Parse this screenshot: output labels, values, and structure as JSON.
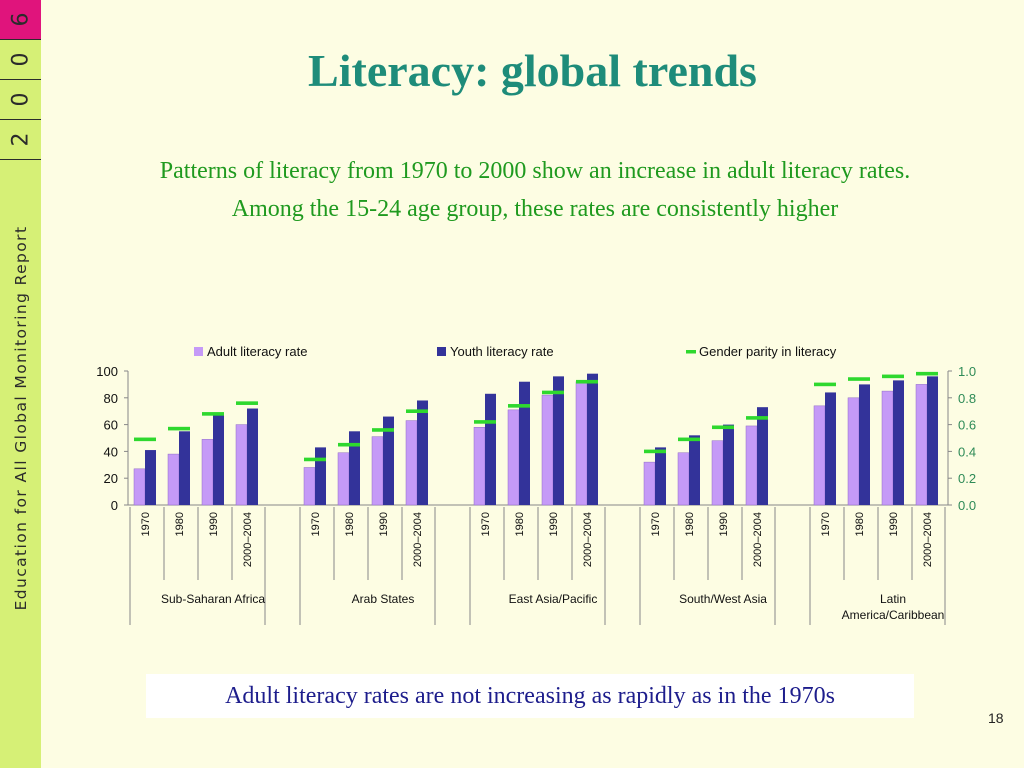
{
  "sidebar": {
    "year_digits": [
      "6",
      "0",
      "0",
      "2"
    ],
    "text": "Education for All Global Monitoring Report"
  },
  "slide": {
    "title": "Literacy: global trends",
    "subtitle_line1": "Patterns of literacy from 1970 to 2000 show an increase in adult literacy rates.",
    "subtitle_line2": "Among the 15-24 age group, these rates are consistently higher",
    "footnote": "Adult literacy rates are not increasing as rapidly as in the 1970s",
    "page_number": "18"
  },
  "colors": {
    "adult": "#c59af7",
    "youth": "#33339a",
    "parity": "#2ed82e",
    "accent_pink": "#e0147c",
    "sidebar_green": "#d6f076"
  },
  "chart_data": {
    "type": "bar",
    "legend": [
      "Adult literacy rate",
      "Youth literacy rate",
      "Gender parity in literacy"
    ],
    "legend_position": "top",
    "grid": false,
    "periods": [
      "1970",
      "1980",
      "1990",
      "2000–2004"
    ],
    "groups": [
      "Sub-Saharan Africa",
      "Arab States",
      "East Asia/Pacific",
      "South/West Asia",
      "Latin America/Caribbean"
    ],
    "y_left": {
      "ticks": [
        "0",
        "20",
        "40",
        "60",
        "80",
        "100"
      ],
      "range": [
        0,
        100
      ]
    },
    "y_right": {
      "ticks": [
        "0.0",
        "0.2",
        "0.4",
        "0.6",
        "0.8",
        "1.0"
      ],
      "range": [
        0,
        1
      ]
    },
    "series": [
      {
        "name": "Adult literacy rate",
        "axis": "left",
        "values": [
          [
            27,
            38,
            49,
            60
          ],
          [
            28,
            39,
            51,
            63
          ],
          [
            58,
            71,
            82,
            92
          ],
          [
            32,
            39,
            48,
            59
          ],
          [
            74,
            80,
            85,
            90
          ]
        ]
      },
      {
        "name": "Youth literacy rate",
        "axis": "left",
        "values": [
          [
            41,
            55,
            67,
            72
          ],
          [
            43,
            55,
            66,
            78
          ],
          [
            83,
            92,
            96,
            98
          ],
          [
            43,
            52,
            60,
            73
          ],
          [
            84,
            90,
            93,
            96
          ]
        ]
      },
      {
        "name": "Gender parity in literacy",
        "axis": "right",
        "values": [
          [
            0.49,
            0.57,
            0.68,
            0.76
          ],
          [
            0.34,
            0.45,
            0.56,
            0.7
          ],
          [
            0.62,
            0.74,
            0.84,
            0.92
          ],
          [
            0.4,
            0.49,
            0.58,
            0.65
          ],
          [
            0.9,
            0.94,
            0.96,
            0.98
          ]
        ]
      }
    ]
  }
}
